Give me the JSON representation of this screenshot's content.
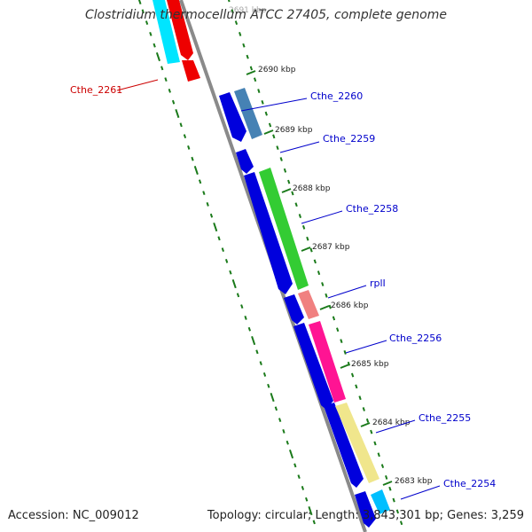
{
  "title": "Clostridium thermocellum ATCC 27405, complete genome",
  "footer": {
    "accession": "Accession: NC_009012",
    "topology": "Topology: circular; Length: 3,843,301 bp; Genes: 3,259"
  },
  "colors": {
    "backbone": "#808080",
    "tick": "#1a7a1a",
    "forward_gene_blue": "#0000dd",
    "label_blue": "#0000cc",
    "label_red": "#cc0000"
  },
  "kbp_ticks": [
    "2690 kbp",
    "2689 kbp",
    "2688 kbp",
    "2687 kbp",
    "2686 kbp",
    "2685 kbp",
    "2684 kbp",
    "2683 kbp"
  ],
  "gene_labels": [
    {
      "name": "Cthe_2261",
      "color": "red"
    },
    {
      "name": "Cthe_2260",
      "color": "blue"
    },
    {
      "name": "Cthe_2259",
      "color": "blue"
    },
    {
      "name": "Cthe_2258",
      "color": "blue"
    },
    {
      "name": "rplI",
      "color": "blue"
    },
    {
      "name": "Cthe_2256",
      "color": "blue"
    },
    {
      "name": "Cthe_2255",
      "color": "blue"
    },
    {
      "name": "Cthe_2254",
      "color": "blue"
    }
  ]
}
